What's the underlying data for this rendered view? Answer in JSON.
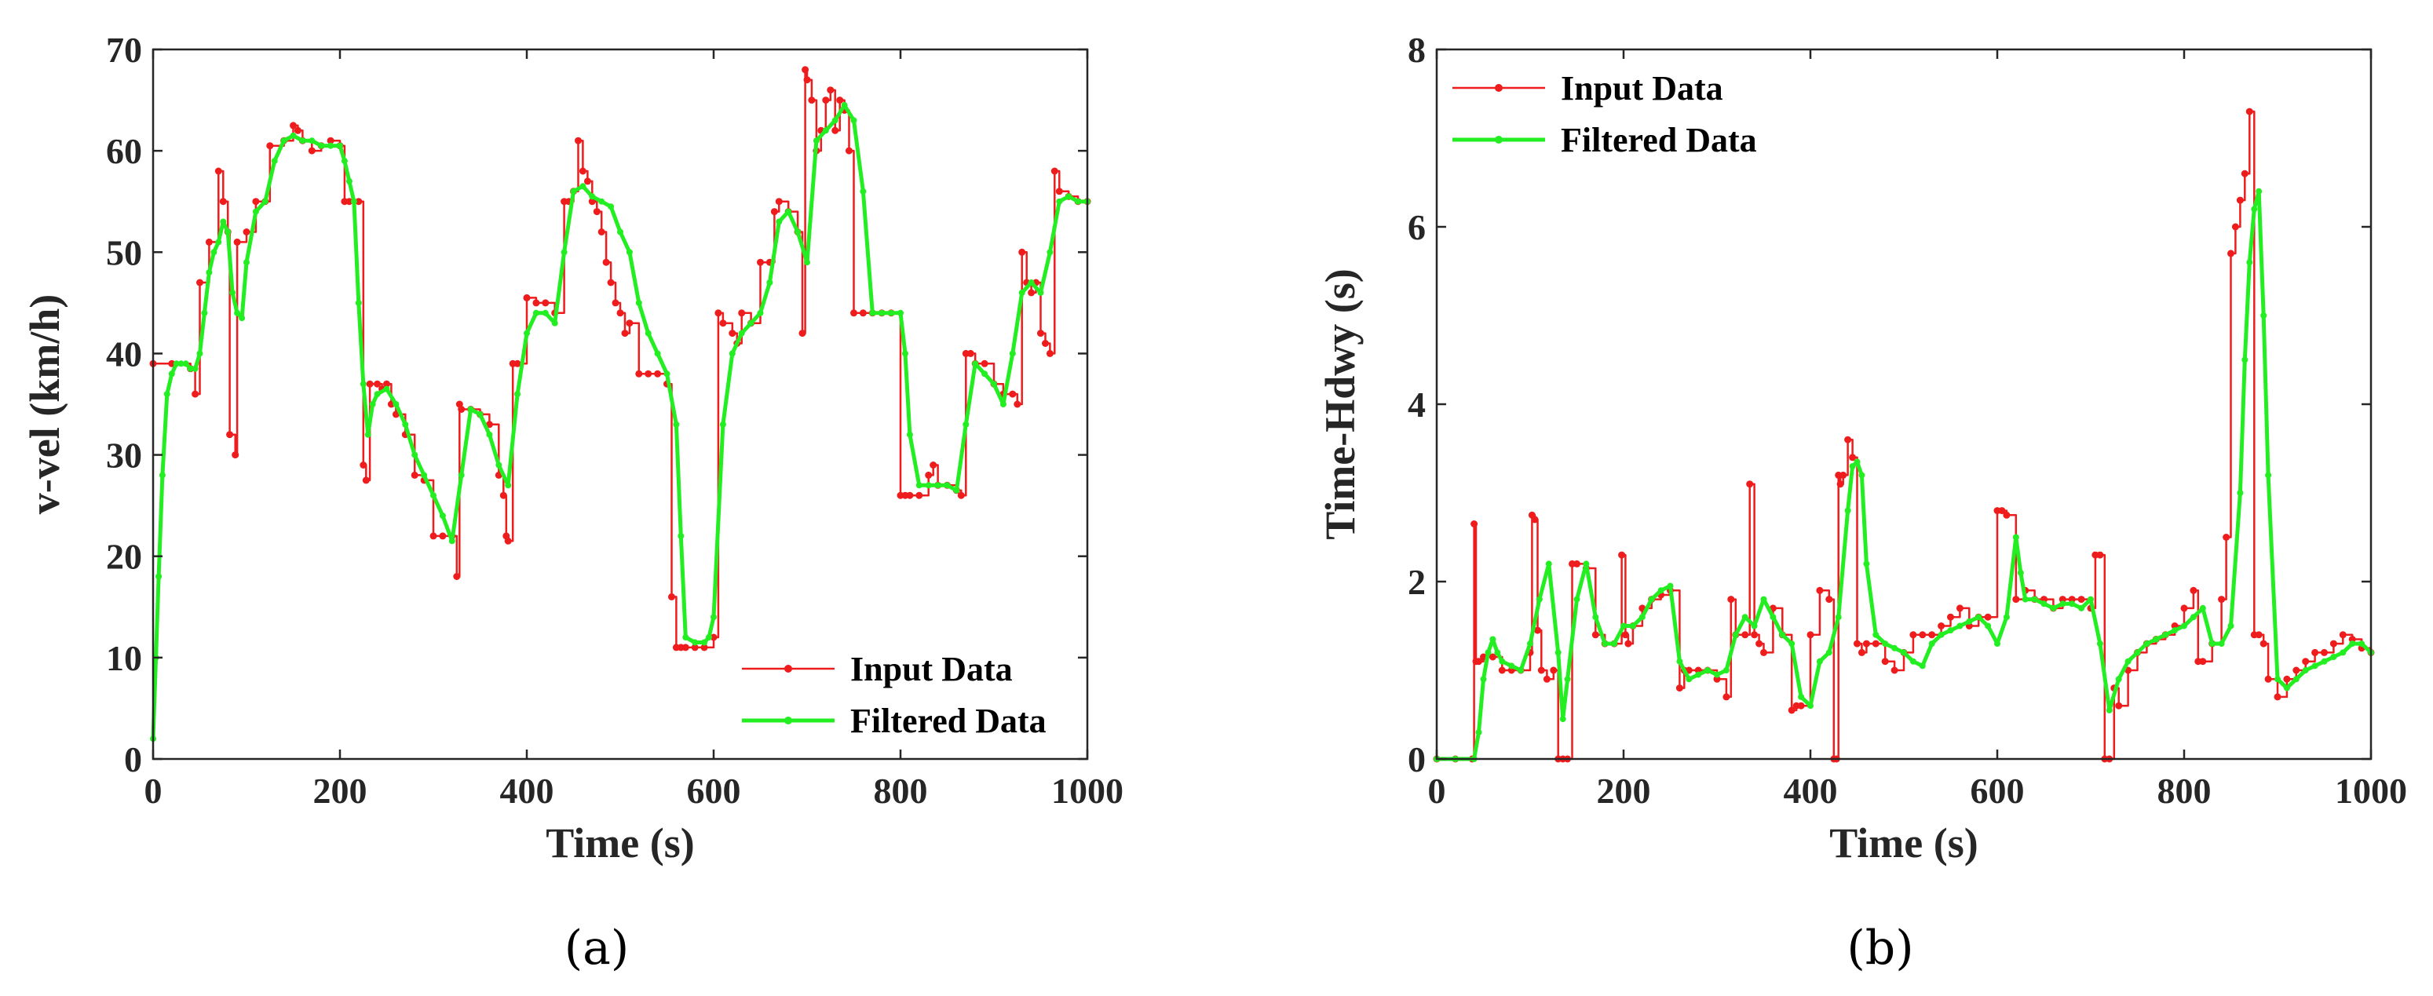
{
  "chart_data": [
    {
      "type": "line",
      "panel_label": "(a)",
      "xlabel": "Time (s)",
      "ylabel": "v-vel (km/h)",
      "xlim": [
        0,
        1000
      ],
      "ylim": [
        0,
        70
      ],
      "xticks": [
        "0",
        "200",
        "400",
        "600",
        "800",
        "1000"
      ],
      "yticks": [
        "0",
        "10",
        "20",
        "30",
        "40",
        "50",
        "60",
        "70"
      ],
      "legend_position": "bottom-right",
      "series": [
        {
          "name": "Input Data",
          "color": "#ee1c1c",
          "x": [
            0,
            20,
            40,
            45,
            50,
            60,
            70,
            75,
            80,
            82,
            88,
            90,
            100,
            110,
            120,
            125,
            140,
            150,
            155,
            160,
            170,
            180,
            190,
            200,
            205,
            210,
            220,
            225,
            228,
            232,
            240,
            245,
            250,
            255,
            260,
            270,
            280,
            290,
            300,
            310,
            320,
            325,
            328,
            330,
            340,
            350,
            360,
            370,
            375,
            378,
            380,
            385,
            390,
            400,
            410,
            420,
            430,
            440,
            445,
            450,
            455,
            460,
            465,
            470,
            475,
            480,
            485,
            490,
            495,
            500,
            505,
            510,
            520,
            530,
            540,
            550,
            555,
            560,
            565,
            570,
            580,
            590,
            600,
            605,
            610,
            620,
            625,
            630,
            640,
            650,
            660,
            665,
            670,
            680,
            690,
            695,
            698,
            700,
            705,
            710,
            715,
            720,
            725,
            730,
            735,
            740,
            745,
            750,
            760,
            770,
            780,
            790,
            800,
            805,
            810,
            820,
            830,
            835,
            840,
            850,
            860,
            865,
            870,
            875,
            880,
            890,
            900,
            910,
            920,
            925,
            930,
            935,
            940,
            945,
            950,
            955,
            960,
            965,
            970,
            980,
            990,
            1000
          ],
          "values": [
            39,
            39,
            38.5,
            36,
            47,
            51,
            58,
            55,
            52,
            32,
            30,
            51,
            52,
            55,
            55,
            60.5,
            61,
            62.5,
            62,
            61,
            60,
            60.5,
            61,
            60.5,
            55,
            55,
            55,
            29,
            27.5,
            37,
            37,
            36.5,
            37,
            35,
            34,
            32,
            28,
            27.5,
            22,
            22,
            22,
            18,
            35,
            34.5,
            34.5,
            34,
            33,
            28,
            26,
            22,
            21.5,
            39,
            39,
            45.5,
            45,
            45,
            44,
            55,
            55,
            56,
            61,
            58,
            57,
            55,
            54,
            52,
            49,
            47,
            45,
            44,
            42,
            43,
            38,
            38,
            38,
            37,
            16,
            11,
            11,
            11,
            11,
            11,
            12,
            44,
            43,
            42,
            41,
            44,
            43,
            49,
            49,
            54,
            55,
            54,
            52,
            42,
            68,
            67,
            65,
            60,
            62,
            65,
            66,
            62,
            65,
            64,
            60,
            44,
            44,
            44,
            44,
            44,
            26,
            26,
            26,
            26,
            28,
            29,
            27,
            27,
            26.5,
            26,
            40,
            40,
            39,
            39,
            37,
            36,
            36,
            35,
            50,
            47,
            46,
            47,
            42,
            41,
            40,
            58,
            56,
            55.5,
            55,
            55
          ]
        },
        {
          "name": "Filtered Data",
          "color": "#22ee22",
          "x": [
            0,
            3,
            6,
            10,
            15,
            20,
            25,
            30,
            35,
            40,
            45,
            50,
            55,
            60,
            65,
            70,
            75,
            80,
            85,
            90,
            95,
            100,
            110,
            120,
            130,
            140,
            150,
            160,
            170,
            180,
            190,
            200,
            205,
            210,
            215,
            220,
            225,
            230,
            235,
            240,
            250,
            260,
            270,
            280,
            290,
            300,
            310,
            320,
            330,
            340,
            350,
            360,
            370,
            380,
            390,
            400,
            410,
            420,
            430,
            440,
            450,
            460,
            470,
            480,
            490,
            500,
            510,
            520,
            530,
            540,
            550,
            560,
            565,
            570,
            580,
            590,
            595,
            600,
            610,
            620,
            630,
            640,
            650,
            660,
            670,
            680,
            690,
            700,
            710,
            720,
            730,
            740,
            750,
            760,
            770,
            780,
            790,
            800,
            805,
            810,
            820,
            830,
            840,
            850,
            860,
            870,
            880,
            890,
            900,
            910,
            920,
            930,
            940,
            950,
            960,
            970,
            980,
            990,
            1000
          ],
          "values": [
            2,
            10,
            18,
            28,
            36,
            38,
            39,
            39,
            39,
            38.5,
            38.5,
            40,
            44,
            48,
            50,
            51,
            53,
            52,
            46,
            44,
            43.5,
            49,
            54,
            55,
            59,
            61,
            61.5,
            61,
            61,
            60.5,
            60.5,
            60.5,
            59,
            57,
            55,
            45,
            37,
            32,
            35,
            36,
            36.5,
            35,
            33,
            30,
            28,
            26,
            24,
            21.5,
            28,
            34.5,
            34,
            32,
            29,
            27,
            36,
            42,
            44,
            44,
            43,
            50,
            56,
            56.5,
            55.5,
            55,
            54.5,
            52,
            50,
            45,
            42,
            40,
            38,
            33,
            22,
            12,
            11.5,
            11.5,
            12,
            14,
            33,
            40,
            42,
            43,
            44,
            47,
            53,
            54,
            52,
            49,
            61,
            62,
            63,
            64.5,
            63,
            56,
            44,
            44,
            44,
            44,
            40,
            32,
            27,
            27,
            27,
            27,
            26.5,
            33,
            39,
            38,
            37,
            35,
            40,
            46,
            47,
            46,
            50,
            55,
            55.5,
            55,
            55
          ]
        }
      ]
    },
    {
      "type": "line",
      "panel_label": "(b)",
      "xlabel": "Time (s)",
      "ylabel": "Time-Hdwy (s)",
      "xlim": [
        0,
        1000
      ],
      "ylim": [
        0,
        8
      ],
      "xticks": [
        "0",
        "200",
        "400",
        "600",
        "800",
        "1000"
      ],
      "yticks": [
        "0",
        "2",
        "4",
        "6",
        "8"
      ],
      "legend_position": "top-left",
      "series": [
        {
          "name": "Input Data",
          "color": "#ee1c1c",
          "x": [
            0,
            20,
            38,
            40,
            42,
            45,
            50,
            60,
            70,
            80,
            90,
            100,
            102,
            105,
            108,
            112,
            118,
            125,
            130,
            135,
            140,
            145,
            150,
            160,
            170,
            180,
            190,
            198,
            202,
            205,
            210,
            220,
            230,
            240,
            250,
            260,
            265,
            270,
            280,
            290,
            300,
            310,
            315,
            320,
            330,
            335,
            340,
            345,
            350,
            360,
            370,
            380,
            385,
            390,
            400,
            410,
            420,
            425,
            428,
            430,
            432,
            435,
            440,
            445,
            450,
            455,
            460,
            470,
            480,
            490,
            500,
            510,
            520,
            530,
            540,
            550,
            560,
            570,
            580,
            590,
            600,
            605,
            610,
            620,
            630,
            640,
            650,
            660,
            670,
            680,
            690,
            700,
            705,
            710,
            715,
            720,
            725,
            730,
            740,
            750,
            760,
            770,
            780,
            790,
            800,
            810,
            815,
            820,
            830,
            840,
            845,
            850,
            855,
            860,
            865,
            870,
            875,
            880,
            885,
            890,
            900,
            910,
            920,
            930,
            940,
            950,
            960,
            970,
            980,
            990,
            1000
          ],
          "values": [
            0,
            0,
            0,
            2.65,
            1.1,
            1.1,
            1.15,
            1.15,
            1.0,
            1.0,
            1.0,
            1.2,
            2.75,
            2.7,
            1.45,
            1.0,
            0.9,
            1.0,
            0,
            0,
            0,
            2.2,
            2.2,
            2.15,
            1.4,
            1.3,
            1.3,
            2.3,
            1.4,
            1.3,
            1.5,
            1.7,
            1.8,
            1.85,
            1.9,
            0.8,
            1.0,
            1.0,
            1.0,
            1.0,
            0.9,
            0.7,
            1.8,
            1.4,
            1.4,
            3.1,
            1.4,
            1.3,
            1.2,
            1.7,
            1.4,
            0.55,
            0.6,
            0.6,
            1.4,
            1.9,
            1.8,
            0,
            0,
            3.2,
            3.1,
            3.2,
            3.6,
            3.4,
            1.3,
            1.2,
            1.3,
            1.3,
            1.1,
            1.0,
            1.2,
            1.4,
            1.4,
            1.4,
            1.5,
            1.6,
            1.7,
            1.5,
            1.6,
            1.6,
            2.8,
            2.8,
            2.75,
            1.8,
            1.9,
            1.8,
            1.8,
            1.7,
            1.8,
            1.8,
            1.8,
            1.7,
            2.3,
            2.3,
            0,
            0,
            0.8,
            0.6,
            1.0,
            1.2,
            1.3,
            1.35,
            1.4,
            1.5,
            1.7,
            1.9,
            1.1,
            1.1,
            1.3,
            1.8,
            2.5,
            5.7,
            6.0,
            6.3,
            6.6,
            7.3,
            1.4,
            1.4,
            1.3,
            0.9,
            0.7,
            0.9,
            1.0,
            1.1,
            1.2,
            1.2,
            1.3,
            1.4,
            1.35,
            1.25,
            1.2
          ]
        },
        {
          "name": "Filtered Data",
          "color": "#22ee22",
          "x": [
            0,
            20,
            40,
            45,
            50,
            55,
            60,
            65,
            70,
            80,
            90,
            100,
            110,
            120,
            130,
            135,
            140,
            150,
            160,
            170,
            180,
            190,
            200,
            210,
            220,
            230,
            240,
            250,
            260,
            270,
            280,
            290,
            300,
            310,
            320,
            330,
            340,
            350,
            360,
            370,
            380,
            390,
            400,
            410,
            420,
            430,
            440,
            445,
            450,
            455,
            460,
            470,
            480,
            490,
            500,
            510,
            520,
            530,
            540,
            550,
            560,
            570,
            580,
            590,
            600,
            610,
            620,
            625,
            630,
            640,
            650,
            660,
            670,
            680,
            690,
            700,
            710,
            720,
            730,
            740,
            750,
            760,
            770,
            780,
            790,
            800,
            810,
            820,
            830,
            840,
            850,
            860,
            865,
            870,
            875,
            880,
            885,
            890,
            900,
            910,
            920,
            930,
            940,
            950,
            960,
            970,
            980,
            990,
            1000
          ],
          "values": [
            0,
            0,
            0,
            0.3,
            0.9,
            1.2,
            1.35,
            1.2,
            1.1,
            1.05,
            1.0,
            1.3,
            1.8,
            2.2,
            1.2,
            0.45,
            0.9,
            1.8,
            2.2,
            1.6,
            1.3,
            1.3,
            1.5,
            1.5,
            1.6,
            1.8,
            1.9,
            1.95,
            1.1,
            0.9,
            0.95,
            1.0,
            0.95,
            1.0,
            1.4,
            1.6,
            1.5,
            1.8,
            1.6,
            1.4,
            1.3,
            0.7,
            0.6,
            1.1,
            1.2,
            1.6,
            2.8,
            3.3,
            3.35,
            3.2,
            2.2,
            1.4,
            1.3,
            1.25,
            1.2,
            1.1,
            1.05,
            1.3,
            1.4,
            1.45,
            1.5,
            1.55,
            1.6,
            1.5,
            1.3,
            1.6,
            2.5,
            2.1,
            1.8,
            1.8,
            1.75,
            1.7,
            1.75,
            1.75,
            1.7,
            1.8,
            1.3,
            0.55,
            0.9,
            1.1,
            1.2,
            1.3,
            1.35,
            1.4,
            1.45,
            1.5,
            1.6,
            1.7,
            1.3,
            1.3,
            1.5,
            3.0,
            4.5,
            5.6,
            6.2,
            6.4,
            5.0,
            3.2,
            0.9,
            0.8,
            0.9,
            1.0,
            1.05,
            1.1,
            1.15,
            1.2,
            1.3,
            1.3,
            1.2
          ]
        }
      ]
    }
  ]
}
